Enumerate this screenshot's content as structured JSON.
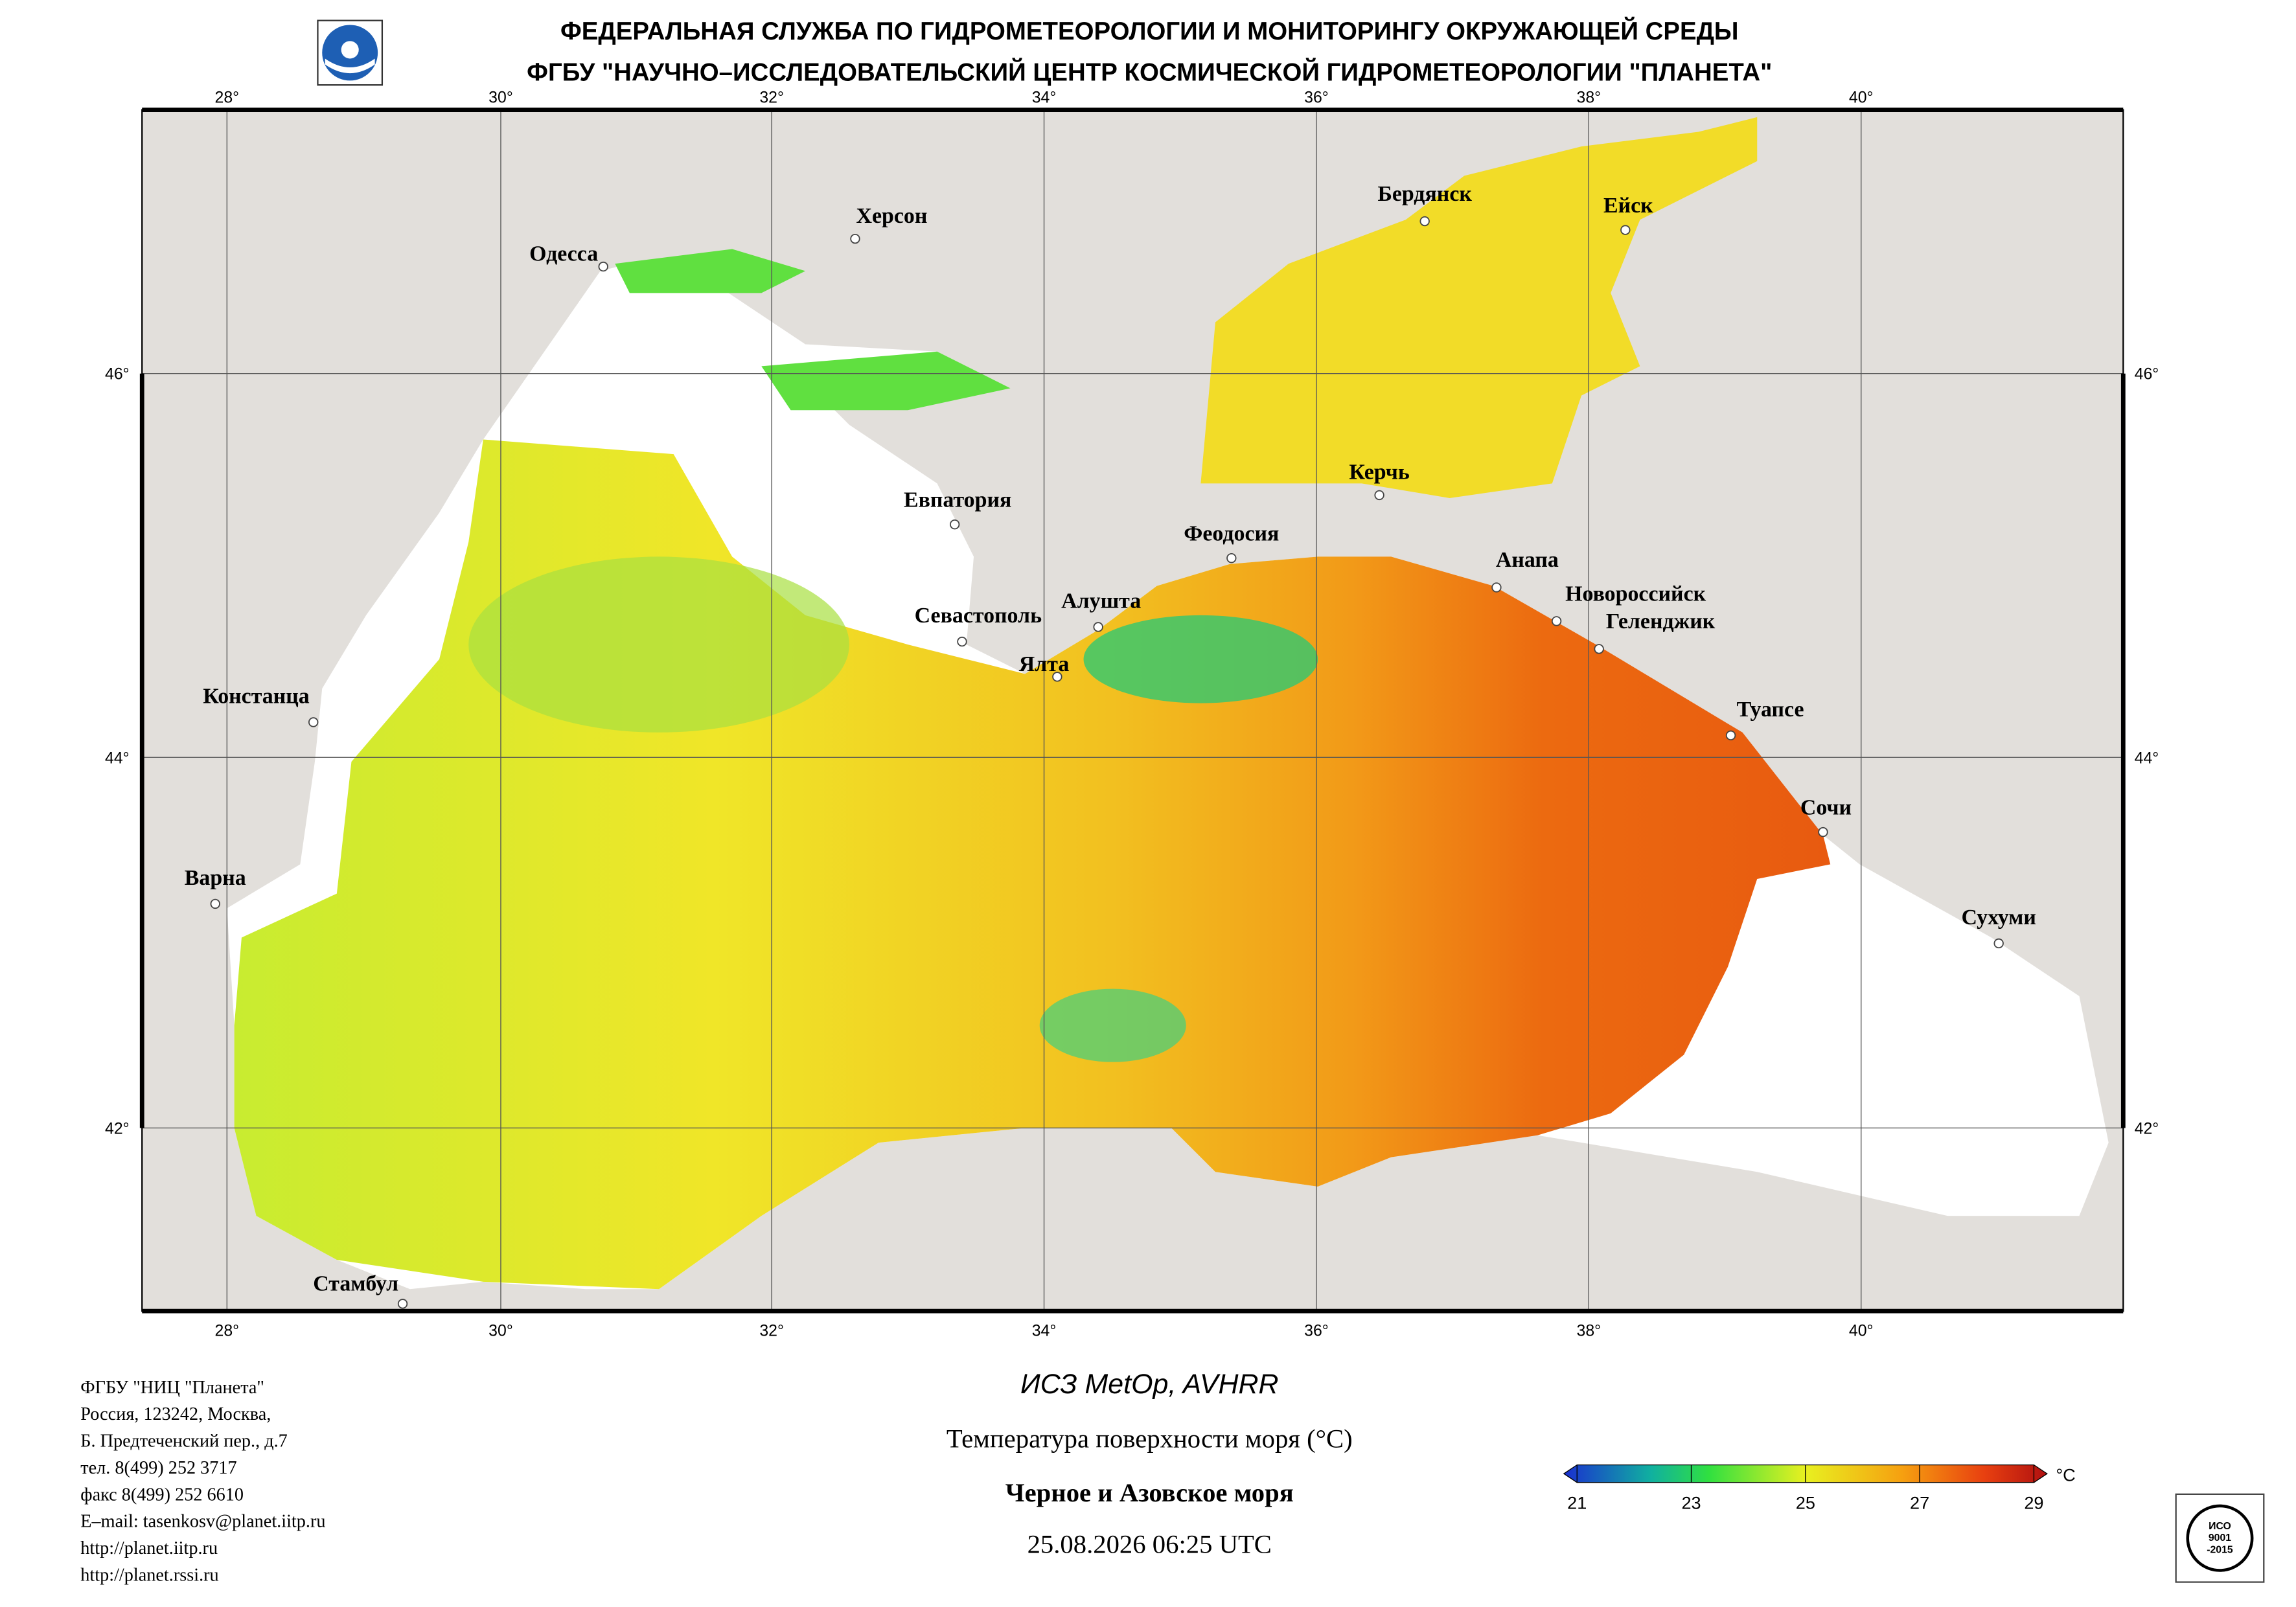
{
  "header": {
    "line1": "ФЕДЕРАЛЬНАЯ СЛУЖБА ПО ГИДРОМЕТЕОРОЛОГИИ И МОНИТОРИНГУ ОКРУЖАЮЩЕЙ СРЕДЫ",
    "line2": "ФГБУ \"НАУЧНО–ИССЛЕДОВАТЕЛЬСКИЙ ЦЕНТР КОСМИЧЕСКОЙ ГИДРОМЕТЕОРОЛОГИИ \"ПЛАНЕТА\""
  },
  "map": {
    "lon_labels": [
      "28°",
      "30°",
      "32°",
      "34°",
      "36°",
      "38°",
      "40°"
    ],
    "lat_labels": [
      "46°",
      "44°",
      "42°"
    ],
    "cities": [
      "Одесса",
      "Херсон",
      "Бердянск",
      "Ейск",
      "Евпатория",
      "Керчь",
      "Феодосия",
      "Анапа",
      "Новороссийск",
      "Геленджик",
      "Алушта",
      "Севастополь",
      "Ялта",
      "Констанца",
      "Туапсе",
      "Сочи",
      "Варна",
      "Сухуми",
      "Стамбул"
    ]
  },
  "footer": {
    "address": [
      "ФГБУ \"НИЦ \"Планета\"",
      "Россия, 123242, Москва,",
      "Б. Предтеченский пер., д.7",
      "тел. 8(499) 252 3717",
      "факс 8(499) 252 6610",
      "E–mail: tasenkosv@planet.iitp.ru",
      "http://planet.iitp.ru",
      "http://planet.rssi.ru"
    ]
  },
  "caption": {
    "satellite": "ИСЗ MetOp, AVHRR",
    "parameter": "Температура поверхности моря (°C)",
    "region": "Черное и Азовское моря",
    "datetime": "25.08.2026 06:25 UTC"
  },
  "colorbar": {
    "range": [
      21,
      29
    ],
    "ticks": [
      21,
      23,
      25,
      27,
      29
    ],
    "unit": "°C"
  },
  "badge": {
    "lines": [
      "ИСО",
      "9001",
      "-2015"
    ]
  }
}
